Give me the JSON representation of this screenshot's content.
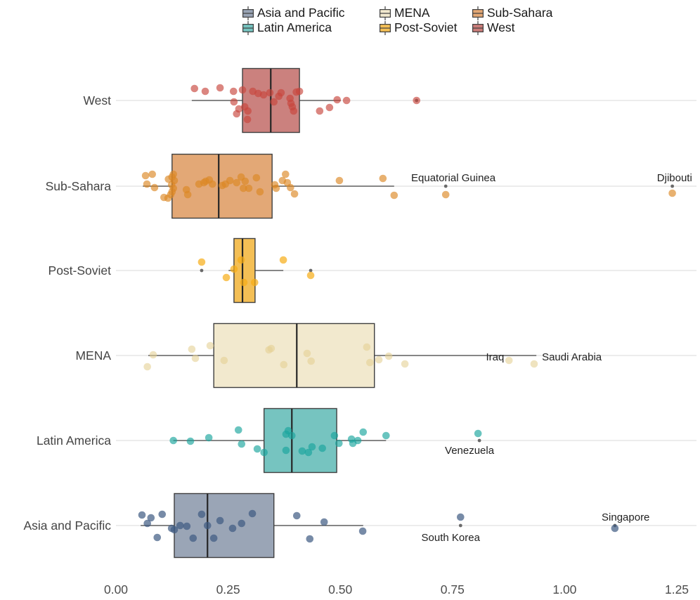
{
  "legend": {
    "columns": [
      {
        "items": [
          {
            "label": "Asia and Pacific",
            "color": "#9aa5b6"
          },
          {
            "label": "Latin America",
            "color": "#76c4c0"
          }
        ]
      },
      {
        "items": [
          {
            "label": "MENA",
            "color": "#f2e9ce"
          },
          {
            "label": "Post-Soviet",
            "color": "#f4bf55"
          }
        ]
      },
      {
        "items": [
          {
            "label": "Sub-Sahara",
            "color": "#e3a876"
          },
          {
            "label": "West",
            "color": "#cb7d7a"
          }
        ]
      }
    ]
  },
  "colors": {
    "background": "#ffffff",
    "grid": "#d9d9d9",
    "box_border": "#3f3f3f",
    "median": "#262626",
    "whisker": "#3f3f3f",
    "outlier_dot": "#6a6a6a",
    "axis_text": "#4d4d4d",
    "row_label": "#444444",
    "annotation": "#222222"
  },
  "chart_data": {
    "type": "boxplot",
    "orientation": "horizontal",
    "title": "",
    "xlabel": "",
    "ylabel": "",
    "x_range": [
      0,
      1.294
    ],
    "x_ticks": {
      "values": [
        0,
        0.25,
        0.5,
        0.75,
        1.0,
        1.25
      ],
      "labels": [
        "0.00",
        "0.25",
        "0.50",
        "0.75",
        "1.00",
        "1.25"
      ]
    },
    "grid": "horizontal-row-lines",
    "legend_position": "top",
    "groups": [
      {
        "name": "West",
        "fill": "#cb817e",
        "point_color": "#c8453c",
        "point_opacity": 0.65,
        "box": {
          "lo": 0.169,
          "q1": 0.282,
          "med": 0.345,
          "q3": 0.409,
          "hi": 0.501
        },
        "outliers": [
          0.67
        ],
        "points": [
          [
            0.175,
            -17
          ],
          [
            0.199,
            -13
          ],
          [
            0.232,
            -18
          ],
          [
            0.262,
            -13
          ],
          [
            0.282,
            -15
          ],
          [
            0.263,
            2
          ],
          [
            0.274,
            12
          ],
          [
            0.269,
            19
          ],
          [
            0.287,
            9
          ],
          [
            0.294,
            15
          ],
          [
            0.305,
            -13
          ],
          [
            0.317,
            -10
          ],
          [
            0.329,
            -8
          ],
          [
            0.293,
            27
          ],
          [
            0.343,
            -11
          ],
          [
            0.352,
            2
          ],
          [
            0.363,
            -6
          ],
          [
            0.368,
            -11
          ],
          [
            0.388,
            -3
          ],
          [
            0.39,
            4
          ],
          [
            0.393,
            9
          ],
          [
            0.396,
            15
          ],
          [
            0.402,
            -12
          ],
          [
            0.409,
            -13
          ],
          [
            0.454,
            15
          ],
          [
            0.476,
            10
          ],
          [
            0.493,
            -1
          ],
          [
            0.514,
            0
          ],
          [
            0.67,
            0
          ]
        ],
        "annotations": []
      },
      {
        "name": "Sub-Sahara",
        "fill": "#e3a876",
        "point_color": "#db8723",
        "point_opacity": 0.65,
        "box": {
          "lo": 0.06,
          "q1": 0.125,
          "med": 0.229,
          "q3": 0.348,
          "hi": 0.62
        },
        "outliers": [
          0.735,
          1.24
        ],
        "points": [
          [
            0.066,
            -15
          ],
          [
            0.081,
            -17
          ],
          [
            0.069,
            -3
          ],
          [
            0.086,
            2
          ],
          [
            0.107,
            16
          ],
          [
            0.116,
            17
          ],
          [
            0.117,
            -10
          ],
          [
            0.125,
            -13
          ],
          [
            0.128,
            -17
          ],
          [
            0.13,
            -8
          ],
          [
            0.124,
            -2
          ],
          [
            0.128,
            3
          ],
          [
            0.125,
            8
          ],
          [
            0.122,
            12
          ],
          [
            0.157,
            5
          ],
          [
            0.16,
            12
          ],
          [
            0.185,
            -3
          ],
          [
            0.196,
            -5
          ],
          [
            0.2,
            -7
          ],
          [
            0.208,
            -9
          ],
          [
            0.215,
            -3
          ],
          [
            0.237,
            -1
          ],
          [
            0.244,
            -3
          ],
          [
            0.254,
            -8
          ],
          [
            0.269,
            -5
          ],
          [
            0.279,
            -13
          ],
          [
            0.288,
            -7
          ],
          [
            0.284,
            3
          ],
          [
            0.296,
            3
          ],
          [
            0.313,
            -12
          ],
          [
            0.321,
            8
          ],
          [
            0.354,
            -2
          ],
          [
            0.357,
            3
          ],
          [
            0.371,
            -8
          ],
          [
            0.378,
            -17
          ],
          [
            0.382,
            -5
          ],
          [
            0.389,
            2
          ],
          [
            0.398,
            11
          ],
          [
            0.498,
            -8
          ],
          [
            0.595,
            -11
          ],
          [
            0.62,
            13
          ],
          [
            0.735,
            12
          ],
          [
            1.24,
            10
          ]
        ],
        "annotations": [
          {
            "text": "Equatorial Guinea",
            "v": 0.752,
            "dy": -7
          },
          {
            "text": "Djibouti",
            "v": 1.245,
            "dy": -7
          }
        ]
      },
      {
        "name": "Post-Soviet",
        "fill": "#f4bf55",
        "point_color": "#f6ac15",
        "point_opacity": 0.7,
        "box": {
          "lo": 0.251,
          "q1": 0.263,
          "med": 0.282,
          "q3": 0.31,
          "hi": 0.373
        },
        "outliers": [
          0.191,
          0.434
        ],
        "points": [
          [
            0.191,
            -12
          ],
          [
            0.246,
            10
          ],
          [
            0.263,
            -2
          ],
          [
            0.279,
            -15
          ],
          [
            0.285,
            17
          ],
          [
            0.309,
            17
          ],
          [
            0.373,
            -15
          ],
          [
            0.434,
            7
          ]
        ],
        "annotations": []
      },
      {
        "name": "MENA",
        "fill": "#f2e9ce",
        "point_color": "#e5d094",
        "point_opacity": 0.6,
        "box": {
          "lo": 0.072,
          "q1": 0.218,
          "med": 0.403,
          "q3": 0.576,
          "hi": 0.937
        },
        "outliers": [],
        "points": [
          [
            0.07,
            16
          ],
          [
            0.083,
            -1
          ],
          [
            0.169,
            -9
          ],
          [
            0.177,
            4
          ],
          [
            0.21,
            -14
          ],
          [
            0.241,
            7
          ],
          [
            0.341,
            -8
          ],
          [
            0.346,
            -10
          ],
          [
            0.374,
            13
          ],
          [
            0.426,
            -3
          ],
          [
            0.435,
            8
          ],
          [
            0.559,
            -12
          ],
          [
            0.566,
            10
          ],
          [
            0.586,
            6
          ],
          [
            0.608,
            1
          ],
          [
            0.644,
            12
          ],
          [
            0.876,
            7
          ],
          [
            0.932,
            12
          ]
        ],
        "annotations": [
          {
            "text": "Iraq",
            "v": 0.845,
            "dy": 7
          },
          {
            "text": "Saudi Arabia",
            "v": 1.016,
            "dy": 7
          }
        ]
      },
      {
        "name": "Latin America",
        "fill": "#76c4c0",
        "point_color": "#19a49c",
        "point_opacity": 0.65,
        "box": {
          "lo": 0.128,
          "q1": 0.33,
          "med": 0.392,
          "q3": 0.492,
          "hi": 0.602
        },
        "outliers": [
          0.81
        ],
        "points": [
          [
            0.128,
            0
          ],
          [
            0.166,
            1
          ],
          [
            0.207,
            -4
          ],
          [
            0.273,
            -15
          ],
          [
            0.28,
            5
          ],
          [
            0.315,
            12
          ],
          [
            0.33,
            17
          ],
          [
            0.379,
            -9
          ],
          [
            0.384,
            -14
          ],
          [
            0.392,
            -7
          ],
          [
            0.379,
            14
          ],
          [
            0.415,
            15
          ],
          [
            0.429,
            17
          ],
          [
            0.437,
            9
          ],
          [
            0.46,
            11
          ],
          [
            0.487,
            -7
          ],
          [
            0.497,
            4
          ],
          [
            0.525,
            -2
          ],
          [
            0.528,
            4
          ],
          [
            0.539,
            0
          ],
          [
            0.551,
            -12
          ],
          [
            0.602,
            -7
          ],
          [
            0.807,
            -10
          ]
        ],
        "annotations": [
          {
            "text": "Venezuela",
            "v": 0.788,
            "dy": 19
          }
        ]
      },
      {
        "name": "Asia and Pacific",
        "fill": "#9aa5b6",
        "point_color": "#3d5a82",
        "point_opacity": 0.7,
        "box": {
          "lo": 0.055,
          "q1": 0.13,
          "med": 0.204,
          "q3": 0.352,
          "hi": 0.551
        },
        "outliers": [
          0.768,
          1.112
        ],
        "points": [
          [
            0.058,
            -15
          ],
          [
            0.07,
            -3
          ],
          [
            0.078,
            -11
          ],
          [
            0.092,
            17
          ],
          [
            0.103,
            -16
          ],
          [
            0.124,
            4
          ],
          [
            0.13,
            6
          ],
          [
            0.143,
            0
          ],
          [
            0.158,
            1
          ],
          [
            0.172,
            18
          ],
          [
            0.191,
            -16
          ],
          [
            0.204,
            0
          ],
          [
            0.218,
            18
          ],
          [
            0.232,
            -7
          ],
          [
            0.26,
            4
          ],
          [
            0.28,
            -3
          ],
          [
            0.304,
            -17
          ],
          [
            0.403,
            -14
          ],
          [
            0.432,
            19
          ],
          [
            0.464,
            -5
          ],
          [
            0.55,
            8
          ],
          [
            0.768,
            -12
          ],
          [
            1.112,
            4
          ]
        ],
        "annotations": [
          {
            "text": "South Korea",
            "v": 0.746,
            "dy": 22
          },
          {
            "text": "Singapore",
            "v": 1.136,
            "dy": -7
          }
        ]
      }
    ]
  }
}
